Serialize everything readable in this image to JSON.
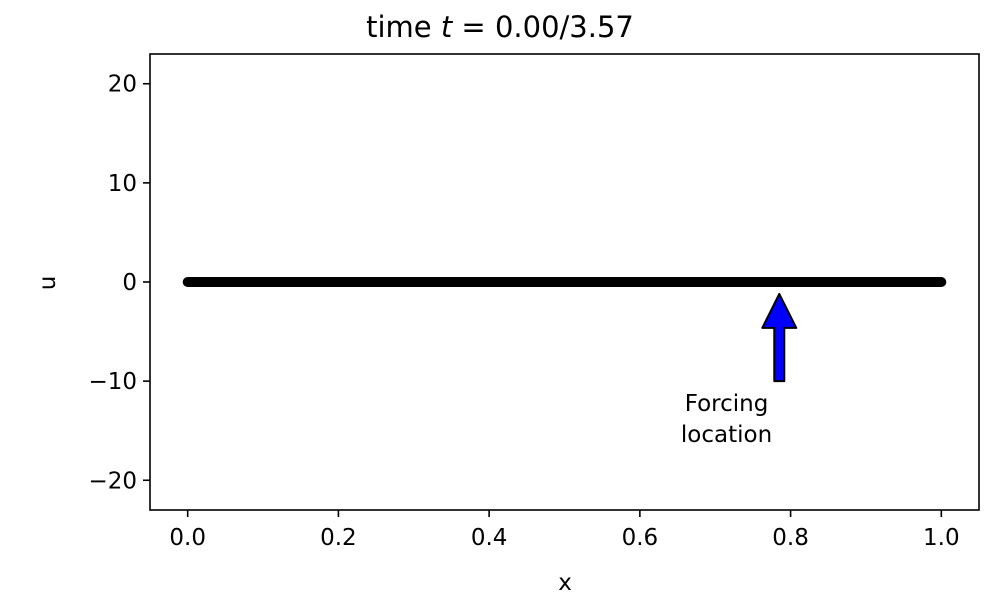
{
  "chart_data": {
    "type": "line",
    "title_prefix": "time ",
    "title_var": "t",
    "title_eq": " = ",
    "title_time": "0.00/3.57",
    "xlabel": "x",
    "ylabel": "u",
    "xlim": [
      -0.05,
      1.05
    ],
    "ylim": [
      -23,
      23
    ],
    "xticks": [
      0.0,
      0.2,
      0.4,
      0.6,
      0.8,
      1.0
    ],
    "xtick_labels": [
      "0.0",
      "0.2",
      "0.4",
      "0.6",
      "0.8",
      "1.0"
    ],
    "yticks": [
      20,
      10,
      0,
      -10,
      -20
    ],
    "ytick_labels": [
      "20",
      "10",
      "0",
      "−10",
      "−20"
    ],
    "series": [
      {
        "x": [
          0.0,
          1.0
        ],
        "y": [
          0,
          0
        ],
        "color": "#000000"
      }
    ],
    "annotation": {
      "text_lines": [
        "Forcing",
        "location"
      ],
      "arrow_x": 0.785,
      "arrow_tail_y": -10,
      "arrow_head_y": -1,
      "text_x": 0.715,
      "text_y": -13,
      "arrow_color": "#0000ff"
    },
    "grid": false,
    "legend": "none"
  }
}
